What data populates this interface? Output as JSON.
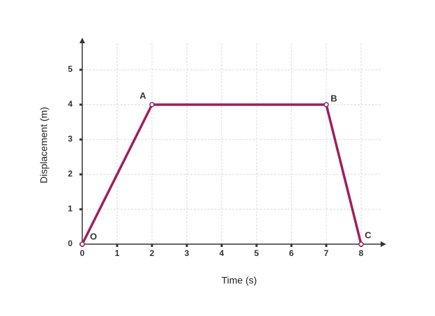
{
  "chart_data": {
    "type": "line",
    "x_label": "Time (s)",
    "y_label": "Displacement (m)",
    "x": [
      0,
      2,
      7,
      8
    ],
    "values": [
      0,
      4,
      4,
      0
    ],
    "point_labels": [
      "O",
      "A",
      "B",
      "C"
    ],
    "color": "#9c1f5e",
    "xlim": [
      0,
      8.6
    ],
    "ylim": [
      0,
      5.8
    ],
    "xticks": [
      0,
      1,
      2,
      3,
      4,
      5,
      6,
      7,
      8
    ],
    "yticks": [
      0,
      1,
      2,
      3,
      4,
      5
    ],
    "grid": true
  }
}
